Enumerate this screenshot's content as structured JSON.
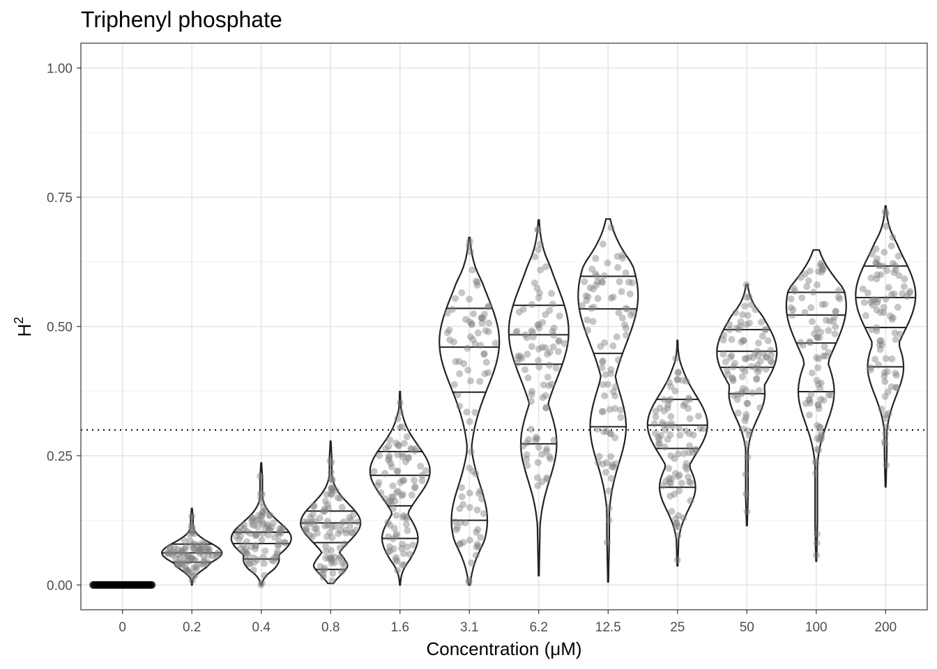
{
  "chart_data": {
    "type": "violin",
    "title": "Triphenyl phosphate",
    "xlabel": "Concentration (μM)",
    "ylabel_base": "H",
    "ylabel_sup": "2",
    "categories": [
      "0",
      "0.2",
      "0.4",
      "0.8",
      "1.6",
      "3.1",
      "6.2",
      "12.5",
      "25",
      "50",
      "100",
      "200"
    ],
    "yticks": [
      "0.00",
      "0.25",
      "0.50",
      "0.75",
      "1.00"
    ],
    "ylim": [
      -0.048,
      1.048
    ],
    "threshold": 0.3,
    "grid": true,
    "quantiles_shown": [
      0.25,
      0.5,
      0.75
    ],
    "violins": [
      {
        "category": "0",
        "min": 0.0,
        "max": 0.0,
        "q1": 0.0,
        "median": 0.0,
        "q3": 0.0
      },
      {
        "category": "0.2",
        "min": 0.0,
        "max": 0.148,
        "q1": 0.044,
        "median": 0.062,
        "q3": 0.079,
        "upper": 0.102,
        "mode": 0.062
      },
      {
        "category": "0.4",
        "min": 0.0,
        "max": 0.236,
        "q1": 0.05,
        "median": 0.08,
        "q3": 0.102,
        "upper": 0.102,
        "mode": 0.09
      },
      {
        "category": "0.8",
        "min": 0.003,
        "max": 0.278,
        "q1": 0.03,
        "median": 0.082,
        "q3": 0.12,
        "upper": 0.143,
        "mode": 0.12
      },
      {
        "category": "1.6",
        "min": 0.0,
        "max": 0.374,
        "q1": 0.09,
        "median": 0.153,
        "q3": 0.212,
        "upper": 0.258,
        "mode": 0.22
      },
      {
        "category": "3.1",
        "min": 0.0,
        "max": 0.672,
        "q1": 0.125,
        "median": 0.373,
        "q3": 0.46,
        "upper": 0.535,
        "mode": 0.47
      },
      {
        "category": "6.2",
        "min": 0.018,
        "max": 0.706,
        "q1": 0.273,
        "median": 0.427,
        "q3": 0.484,
        "upper": 0.541,
        "mode": 0.49
      },
      {
        "category": "12.5",
        "min": 0.006,
        "max": 0.708,
        "q1": 0.306,
        "median": 0.448,
        "q3": 0.534,
        "upper": 0.597,
        "mode": 0.56
      },
      {
        "category": "25",
        "min": 0.037,
        "max": 0.473,
        "q1": 0.189,
        "median": 0.264,
        "q3": 0.309,
        "upper": 0.359,
        "mode": 0.31
      },
      {
        "category": "50",
        "min": 0.115,
        "max": 0.581,
        "q1": 0.37,
        "median": 0.421,
        "q3": 0.452,
        "upper": 0.494,
        "mode": 0.45
      },
      {
        "category": "100",
        "min": 0.046,
        "max": 0.648,
        "q1": 0.374,
        "median": 0.468,
        "q3": 0.522,
        "upper": 0.566,
        "mode": 0.54
      },
      {
        "category": "200",
        "min": 0.19,
        "max": 0.733,
        "q1": 0.422,
        "median": 0.498,
        "q3": 0.556,
        "upper": 0.617,
        "mode": 0.56
      }
    ]
  }
}
